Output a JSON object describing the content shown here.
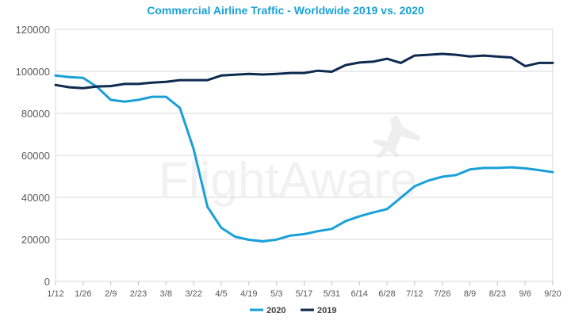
{
  "chart_data": {
    "type": "line",
    "title": "Commercial Airline Traffic - Worldwide 2019 vs. 2020",
    "watermark": "FlightAware",
    "xlabel": "",
    "ylabel": "",
    "ylim": [
      0,
      120000
    ],
    "yticks": [
      0,
      20000,
      40000,
      60000,
      80000,
      100000,
      120000
    ],
    "yticklabels": [
      "0",
      "20000",
      "40000",
      "60000",
      "80000",
      "100000",
      "120000"
    ],
    "xticklabels": [
      "1/12",
      "1/26",
      "2/9",
      "2/23",
      "3/8",
      "3/22",
      "4/5",
      "4/19",
      "5/3",
      "5/17",
      "5/31",
      "6/14",
      "6/28",
      "7/12",
      "7/26",
      "8/9",
      "8/23",
      "9/6",
      "9/20"
    ],
    "legend": "bottom-left",
    "series": [
      {
        "name": "2020",
        "color": "#1aa0d8",
        "values": [
          98000,
          97300,
          96900,
          92600,
          86400,
          85600,
          86400,
          87900,
          87900,
          82600,
          63000,
          35500,
          25500,
          21300,
          19800,
          19000,
          19900,
          21800,
          22500,
          23900,
          25000,
          28700,
          31000,
          32800,
          34400,
          39800,
          45300,
          48000,
          49800,
          50600,
          53300,
          54000,
          54000,
          54300,
          53800,
          53000,
          52000
        ]
      },
      {
        "name": "2019",
        "color": "#0d2a4f",
        "values": [
          93500,
          92400,
          92000,
          92800,
          93000,
          94000,
          94000,
          94600,
          95000,
          95800,
          95800,
          95800,
          98000,
          98400,
          98800,
          98500,
          98800,
          99200,
          99200,
          100300,
          99800,
          103000,
          104200,
          104600,
          106000,
          104000,
          107500,
          107900,
          108300,
          107900,
          107100,
          107500,
          107000,
          106600,
          102500,
          104000,
          104000
        ]
      }
    ]
  }
}
